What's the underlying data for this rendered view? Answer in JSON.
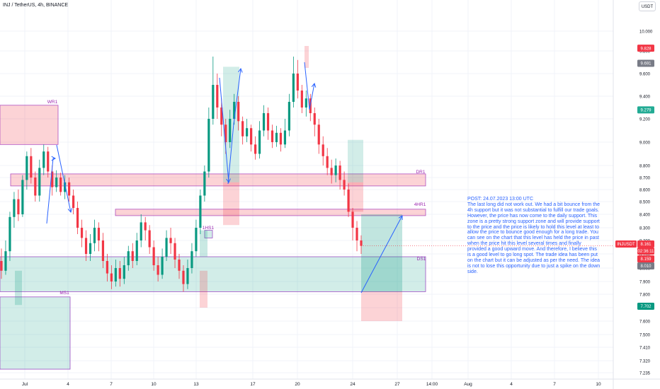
{
  "header": {
    "title": "INJ / TetherUS, 4h, BINANCE",
    "unit_button": "USDT"
  },
  "chart_data": {
    "type": "candlestick",
    "y_ticks": [
      10.0,
      9.8,
      9.6,
      9.4,
      9.2,
      9.0,
      8.8,
      8.7,
      8.6,
      8.5,
      8.4,
      8.3,
      8.2,
      8.1,
      8.0,
      7.9,
      7.8,
      7.7,
      7.6,
      7.5,
      7.41,
      7.32,
      7.235
    ],
    "y_tick_labels": [
      "10.000",
      "9.800",
      "9.600",
      "9.400",
      "9.200",
      "9.000",
      "8.800",
      "8.700",
      "8.600",
      "8.500",
      "8.400",
      "8.300",
      "8.200",
      "8.100",
      "8.000",
      "7.900",
      "7.800",
      "7.700",
      "7.600",
      "7.500",
      "7.410",
      "7.320",
      "7.235"
    ],
    "x_tick_labels": [
      "Jul",
      "4",
      "7",
      "10",
      "13",
      "17",
      "20",
      "24",
      "27",
      "14:00",
      "Aug",
      "4",
      "7",
      "10"
    ],
    "price_badges": [
      {
        "label": "9.828",
        "value": 9.828,
        "color": "#f23645"
      },
      {
        "label": "9.691",
        "value": 9.691,
        "color": "#787b86"
      },
      {
        "label": "9.279",
        "value": 9.279,
        "color": "#22ab94"
      },
      {
        "label": "INJUSDT",
        "value": 8.161,
        "color": "#f23645"
      },
      {
        "label": "8.161",
        "value": 8.161,
        "color": "#f23645"
      },
      {
        "label": "02:36:11",
        "value": 8.161,
        "color": "#f23645"
      },
      {
        "label": "8.159",
        "value": 8.159,
        "color": "#f23645"
      },
      {
        "label": "8.010",
        "value": 8.01,
        "color": "#787b86"
      },
      {
        "label": "7.702",
        "value": 7.702,
        "color": "#089981"
      }
    ],
    "zones": [
      {
        "label": "WR1",
        "low": 8.98,
        "high": 9.32,
        "color": "#f23645"
      },
      {
        "label": "DR1",
        "low": 8.63,
        "high": 8.73,
        "color": "#f23645"
      },
      {
        "label": "4HR1",
        "low": 8.39,
        "high": 8.44,
        "color": "#f23645"
      },
      {
        "label": "DS1",
        "low": 7.82,
        "high": 8.08,
        "color": "#089981"
      },
      {
        "label": "MS1",
        "low": 7.26,
        "high": 7.78,
        "color": "#089981"
      },
      {
        "label": "1HS1",
        "low": 8.22,
        "high": 8.28,
        "color": "#089981"
      }
    ],
    "position": {
      "entry": 7.82,
      "target": 8.4,
      "stop": 7.6
    },
    "last_price": 8.161,
    "candles": [
      [
        8.05,
        7.98,
        8.14,
        7.92
      ],
      [
        7.98,
        8.12,
        8.2,
        7.95
      ],
      [
        8.12,
        8.38,
        8.42,
        8.05
      ],
      [
        8.38,
        8.52,
        8.58,
        8.3
      ],
      [
        8.52,
        8.4,
        8.6,
        8.35
      ],
      [
        8.4,
        8.68,
        8.72,
        8.38
      ],
      [
        8.68,
        8.88,
        8.92,
        8.6
      ],
      [
        8.88,
        8.7,
        8.95,
        8.65
      ],
      [
        8.7,
        8.55,
        8.75,
        8.5
      ],
      [
        8.55,
        8.78,
        8.85,
        8.5
      ],
      [
        8.78,
        8.92,
        8.98,
        8.72
      ],
      [
        8.92,
        8.75,
        8.96,
        8.7
      ],
      [
        8.75,
        8.62,
        8.8,
        8.55
      ],
      [
        8.62,
        8.7,
        8.76,
        8.58
      ],
      [
        8.7,
        8.58,
        8.74,
        8.55
      ],
      [
        8.58,
        8.66,
        8.72,
        8.52
      ],
      [
        8.66,
        8.55,
        8.7,
        8.5
      ],
      [
        8.55,
        8.45,
        8.6,
        8.4
      ],
      [
        8.45,
        8.3,
        8.5,
        8.25
      ],
      [
        8.3,
        8.22,
        8.36,
        8.15
      ],
      [
        8.22,
        8.1,
        8.28,
        8.05
      ],
      [
        8.1,
        8.18,
        8.25,
        8.05
      ],
      [
        8.18,
        8.3,
        8.36,
        8.12
      ],
      [
        8.3,
        8.2,
        8.34,
        8.12
      ],
      [
        8.2,
        8.05,
        8.26,
        8.0
      ],
      [
        8.05,
        7.96,
        8.1,
        7.9
      ],
      [
        7.96,
        7.9,
        8.02,
        7.84
      ],
      [
        7.9,
        8.0,
        8.06,
        7.86
      ],
      [
        8.0,
        7.92,
        8.05,
        7.86
      ],
      [
        7.92,
        8.02,
        8.08,
        7.88
      ],
      [
        8.02,
        8.12,
        8.16,
        7.98
      ],
      [
        8.12,
        8.05,
        8.18,
        8.0
      ],
      [
        8.05,
        8.2,
        8.26,
        8.02
      ],
      [
        8.2,
        8.34,
        8.4,
        8.15
      ],
      [
        8.34,
        8.28,
        8.38,
        8.2
      ],
      [
        8.28,
        8.15,
        8.32,
        8.1
      ],
      [
        8.15,
        8.02,
        8.2,
        7.98
      ],
      [
        8.02,
        7.95,
        8.08,
        7.9
      ],
      [
        7.95,
        8.08,
        8.14,
        7.92
      ],
      [
        8.08,
        8.22,
        8.28,
        8.05
      ],
      [
        8.22,
        8.18,
        8.3,
        8.1
      ],
      [
        8.18,
        8.06,
        8.22,
        8.0
      ],
      [
        8.06,
        7.98,
        8.1,
        7.92
      ],
      [
        7.98,
        7.88,
        8.02,
        7.82
      ],
      [
        7.88,
        8.0,
        8.06,
        7.84
      ],
      [
        8.0,
        8.12,
        8.18,
        7.96
      ],
      [
        8.12,
        8.3,
        8.36,
        8.08
      ],
      [
        8.3,
        8.55,
        8.6,
        8.25
      ],
      [
        8.55,
        8.75,
        8.8,
        8.5
      ],
      [
        8.75,
        9.2,
        9.3,
        8.7
      ],
      [
        9.2,
        9.5,
        9.75,
        9.15
      ],
      [
        9.5,
        9.3,
        9.6,
        9.2
      ],
      [
        9.3,
        9.15,
        9.38,
        9.05
      ],
      [
        9.15,
        9.0,
        9.2,
        8.9
      ],
      [
        9.0,
        9.2,
        9.28,
        8.95
      ],
      [
        9.2,
        9.35,
        9.42,
        9.15
      ],
      [
        9.35,
        9.18,
        9.4,
        9.1
      ],
      [
        9.18,
        9.05,
        9.22,
        8.98
      ],
      [
        9.05,
        9.12,
        9.2,
        9.0
      ],
      [
        9.12,
        8.98,
        9.15,
        8.92
      ],
      [
        8.98,
        8.9,
        9.05,
        8.85
      ],
      [
        8.9,
        9.1,
        9.18,
        8.86
      ],
      [
        9.1,
        9.25,
        9.32,
        9.05
      ],
      [
        9.25,
        9.1,
        9.3,
        9.02
      ],
      [
        9.1,
        9.0,
        9.15,
        8.95
      ],
      [
        9.0,
        9.08,
        9.14,
        8.96
      ],
      [
        9.08,
        8.98,
        9.12,
        8.92
      ],
      [
        8.98,
        9.1,
        9.2,
        8.95
      ],
      [
        9.1,
        9.35,
        9.42,
        9.05
      ],
      [
        9.35,
        9.6,
        9.75,
        9.3
      ],
      [
        9.6,
        9.45,
        9.72,
        9.38
      ],
      [
        9.45,
        9.3,
        9.5,
        9.25
      ],
      [
        9.3,
        9.38,
        9.45,
        9.22
      ],
      [
        9.38,
        9.25,
        9.42,
        9.18
      ],
      [
        9.25,
        9.15,
        9.3,
        9.05
      ],
      [
        9.15,
        8.98,
        9.2,
        8.9
      ],
      [
        8.98,
        8.88,
        9.05,
        8.8
      ],
      [
        8.88,
        8.78,
        8.95,
        8.72
      ],
      [
        8.78,
        8.72,
        8.85,
        8.65
      ],
      [
        8.72,
        8.8,
        8.86,
        8.66
      ],
      [
        8.8,
        8.68,
        8.84,
        8.6
      ],
      [
        8.68,
        8.6,
        8.75,
        8.55
      ],
      [
        8.6,
        8.42,
        8.65,
        8.38
      ],
      [
        8.42,
        8.3,
        8.45,
        8.2
      ],
      [
        8.3,
        8.2,
        8.35,
        8.12
      ],
      [
        8.2,
        8.16,
        8.24,
        8.1
      ]
    ]
  },
  "post": {
    "heading": "POST: 24.07.2023 13:00 UTC",
    "body": "The last long did not work out. We had a bit bounce from the 4h support but it was not substantial to fulfill our trade goals. However, the price has now come to the daily support. This zone is a pretty strong support zone and will provide support to the price and the price is likely to hold this level at least to allow the price to bounce good enough for a long trade. You can see on the chart that this level has held the price in past when the price hit this level several times and finally provided a good upward move. And therefore, I believe this is a good level to go long spot. The trade idea has been put on the chart but it can be adjusted as per the need. The idea is not to lose this opportunity due to just a spike on the down side."
  }
}
